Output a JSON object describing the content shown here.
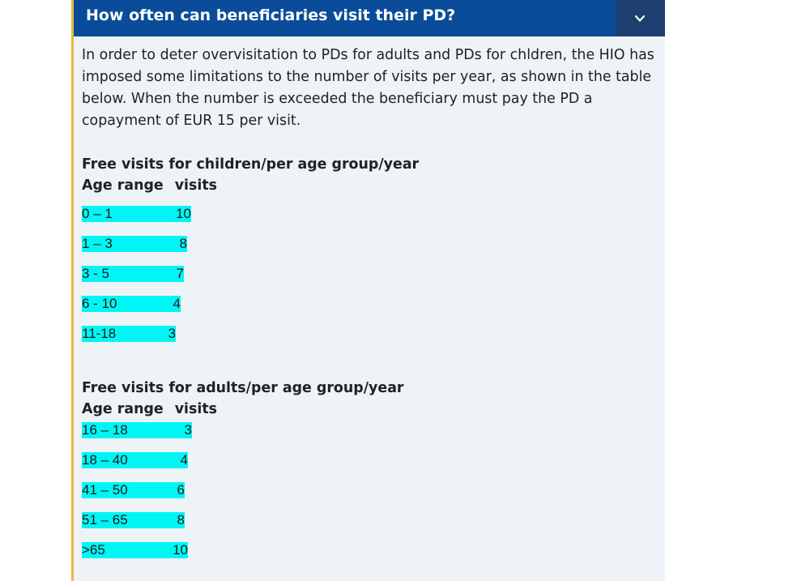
{
  "faq": {
    "question": "How often can beneficiaries visit their PD?",
    "toggle_icon": "chevron-down-icon",
    "intro": "In order to deter overvisitation to PDs for adults and PDs for chldren, the HIO has imposed some limitations to the number of visits per year, as shown in the table below. When the number is exceeded the beneficiary must pay the PD a copayment of EUR 15 per visit.",
    "children": {
      "title": "Free visits for children/per age group/year",
      "col_age": "Age range",
      "col_visits": "visits",
      "rows": [
        {
          "age": "0 – 1",
          "visits": "10"
        },
        {
          "age": "1 – 3",
          "visits": "8"
        },
        {
          "age": "3 - 5",
          "visits": "7"
        },
        {
          "age": "6 - 10",
          "visits": "4"
        },
        {
          "age": "11-18",
          "visits": "3"
        }
      ]
    },
    "adults": {
      "title": "Free visits for adults/per age group/year",
      "col_age": "Age range",
      "col_visits": "visits",
      "rows": [
        {
          "age": "16 – 18",
          "visits": "3"
        },
        {
          "age": "18 – 40",
          "visits": "4"
        },
        {
          "age": "41 – 50",
          "visits": "6"
        },
        {
          "age": "51 – 65",
          "visits": "8"
        },
        {
          "age": ">65",
          "visits": "10"
        }
      ]
    }
  },
  "colors": {
    "header_bg": "#0a4c99",
    "toggle_bg": "#1e3f6f",
    "panel_bg": "#eef3f8",
    "accent_border": "#e9b93a",
    "highlight": "#00f5f5"
  }
}
